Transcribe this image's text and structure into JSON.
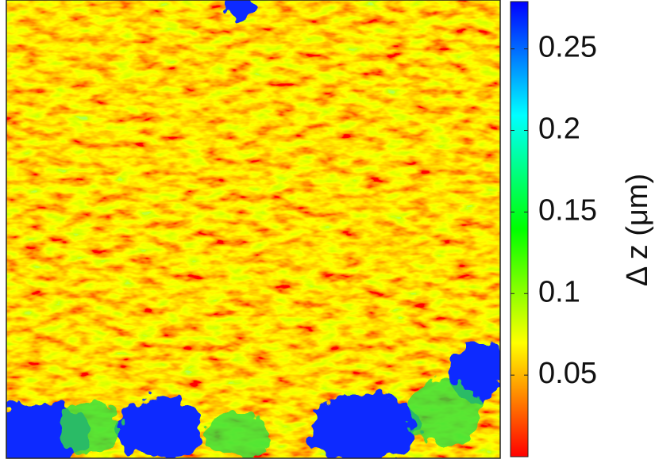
{
  "chart_data": {
    "type": "heatmap",
    "colorbar_label": "Δ z (μm)",
    "clim": [
      0,
      0.279
    ],
    "cticks": [
      0.05,
      0.1,
      0.15,
      0.2,
      0.25
    ],
    "colormap": [
      "#ff0000",
      "#ffff00",
      "#00ff00",
      "#00ffff",
      "#0000ff"
    ]
  }
}
